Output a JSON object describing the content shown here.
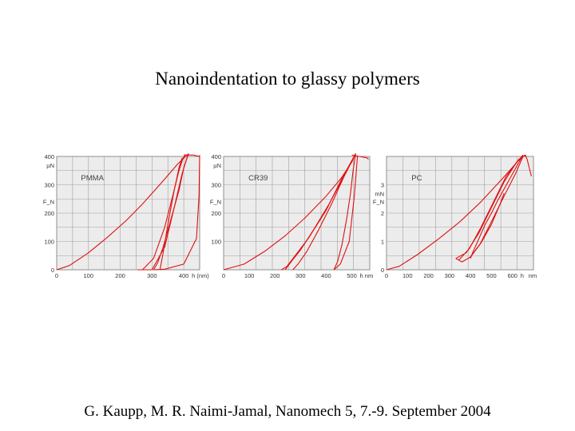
{
  "title": "Nanoindentation to glassy polymers",
  "citation": "G. Kaupp, M. R. Naimi-Jamal, Nanomech 5, 7.-9. September 2004",
  "colors": {
    "curve": "#e01010",
    "grid": "#a0a0a0",
    "plot_bg": "#ececec"
  },
  "chart_data": [
    {
      "type": "line",
      "title": "PMMA",
      "xlabel": "h (nm)",
      "ylabel_top": "µN",
      "ylabel_side": "F_N",
      "xlim": [
        0,
        450
      ],
      "ylim": [
        0,
        400
      ],
      "x_ticks": [
        {
          "v": 0,
          "label": "0"
        },
        {
          "v": 100,
          "label": "100"
        },
        {
          "v": 200,
          "label": "200"
        },
        {
          "v": 300,
          "label": "300"
        },
        {
          "v": 400,
          "label": "400"
        }
      ],
      "y_ticks": [
        {
          "v": 0,
          "label": "0"
        },
        {
          "v": 100,
          "label": "100"
        },
        {
          "v": 200,
          "label": "200"
        },
        {
          "v": 300,
          "label": "300"
        },
        {
          "v": 400,
          "label": "400"
        }
      ],
      "series": [
        {
          "x": [
            0,
            40,
            100,
            160,
            220,
            270,
            310,
            340,
            380,
            415
          ],
          "y": [
            0,
            15,
            60,
            115,
            175,
            232,
            282,
            320,
            372,
            410
          ]
        },
        {
          "x": [
            415,
            400,
            385,
            360,
            335,
            318,
            305
          ],
          "y": [
            410,
            360,
            280,
            180,
            80,
            25,
            0
          ]
        },
        {
          "x": [
            255,
            300,
            340,
            370,
            395,
            410,
            415
          ],
          "y": [
            0,
            0,
            80,
            220,
            340,
            395,
            410
          ]
        },
        {
          "x": [
            270,
            305,
            340,
            365,
            385,
            398,
            405
          ],
          "y": [
            0,
            40,
            150,
            260,
            350,
            395,
            405
          ]
        },
        {
          "x": [
            325,
            335,
            350,
            368,
            385,
            395
          ],
          "y": [
            0,
            60,
            160,
            270,
            360,
            395
          ]
        },
        {
          "x": [
            305,
            340,
            400,
            440,
            448,
            450
          ],
          "y": [
            0,
            2,
            20,
            110,
            260,
            405
          ]
        },
        {
          "x": [
            400,
            430,
            450
          ],
          "y": [
            405,
            405,
            400
          ]
        }
      ]
    },
    {
      "type": "line",
      "title": "CR39",
      "xlabel": "h nm",
      "ylabel_top": "µN",
      "ylabel_side": "F_N",
      "xlim": [
        0,
        570
      ],
      "ylim": [
        0,
        400
      ],
      "x_ticks": [
        {
          "v": 0,
          "label": "0"
        },
        {
          "v": 100,
          "label": "100"
        },
        {
          "v": 200,
          "label": "200"
        },
        {
          "v": 300,
          "label": "300"
        },
        {
          "v": 400,
          "label": "400"
        },
        {
          "v": 500,
          "label": "500"
        }
      ],
      "y_ticks": [
        {
          "v": 100,
          "label": "100"
        },
        {
          "v": 200,
          "label": "200"
        },
        {
          "v": 300,
          "label": "300"
        },
        {
          "v": 400,
          "label": "400"
        }
      ],
      "series": [
        {
          "x": [
            0,
            80,
            160,
            240,
            320,
            400,
            460,
            500,
            515
          ],
          "y": [
            0,
            20,
            65,
            120,
            185,
            260,
            325,
            380,
            410
          ]
        },
        {
          "x": [
            515,
            505,
            495,
            480,
            462,
            445,
            430
          ],
          "y": [
            410,
            350,
            270,
            180,
            90,
            30,
            0
          ]
        },
        {
          "x": [
            225,
            245,
            275,
            330,
            400,
            460,
            515
          ],
          "y": [
            0,
            10,
            45,
            110,
            210,
            320,
            410
          ]
        },
        {
          "x": [
            240,
            265,
            300,
            350,
            410,
            470,
            515
          ],
          "y": [
            0,
            30,
            70,
            140,
            230,
            330,
            410
          ]
        },
        {
          "x": [
            270,
            290,
            325,
            370,
            420,
            470,
            515
          ],
          "y": [
            0,
            20,
            65,
            140,
            230,
            330,
            410
          ]
        },
        {
          "x": [
            430,
            455,
            490,
            510,
            522
          ],
          "y": [
            0,
            20,
            100,
            260,
            400
          ]
        },
        {
          "x": [
            500,
            530,
            560,
            565
          ],
          "y": [
            405,
            400,
            395,
            390
          ]
        }
      ]
    },
    {
      "type": "line",
      "title": "PC",
      "xlabel": "h",
      "x_unit": "nm",
      "ylabel_top": "mN",
      "ylabel_side": "F_N",
      "xlim": [
        0,
        700
      ],
      "ylim": [
        0,
        4
      ],
      "x_ticks": [
        {
          "v": 0,
          "label": "0"
        },
        {
          "v": 100,
          "label": "100"
        },
        {
          "v": 200,
          "label": "200"
        },
        {
          "v": 300,
          "label": "300"
        },
        {
          "v": 400,
          "label": "400"
        },
        {
          "v": 500,
          "label": "500"
        },
        {
          "v": 600,
          "label": "600"
        }
      ],
      "y_ticks": [
        {
          "v": 0,
          "label": "0"
        },
        {
          "v": 1,
          "label": "1"
        },
        {
          "v": 2,
          "label": "2"
        },
        {
          "v": 3,
          "label": "3"
        }
      ],
      "series": [
        {
          "x": [
            0,
            60,
            150,
            250,
            350,
            450,
            550,
            610,
            650
          ],
          "y": [
            0,
            0.12,
            0.55,
            1.1,
            1.7,
            2.4,
            3.2,
            3.7,
            4.05
          ]
        },
        {
          "x": [
            650,
            620,
            590,
            560,
            530,
            500,
            470,
            440,
            410,
            400
          ],
          "y": [
            4.05,
            3.65,
            3.25,
            2.85,
            2.45,
            2.0,
            1.6,
            1.1,
            0.6,
            0.4
          ]
        },
        {
          "x": [
            330,
            380,
            440,
            500,
            560,
            620,
            660
          ],
          "y": [
            0.4,
            0.6,
            1.3,
            2.2,
            3.1,
            3.8,
            4.05
          ]
        },
        {
          "x": [
            345,
            395,
            450,
            510,
            570,
            630,
            665
          ],
          "y": [
            0.35,
            0.75,
            1.5,
            2.4,
            3.3,
            3.9,
            4.05
          ]
        },
        {
          "x": [
            400,
            445,
            500,
            560,
            615,
            650
          ],
          "y": [
            0.45,
            0.9,
            1.7,
            2.6,
            3.4,
            4.0
          ]
        },
        {
          "x": [
            330,
            360,
            400,
            450,
            500,
            540,
            560
          ],
          "y": [
            0.4,
            0.28,
            0.45,
            0.95,
            1.6,
            2.3,
            2.7
          ]
        },
        {
          "x": [
            660,
            670,
            680,
            690
          ],
          "y": [
            4.05,
            3.9,
            3.6,
            3.3
          ]
        }
      ]
    }
  ]
}
